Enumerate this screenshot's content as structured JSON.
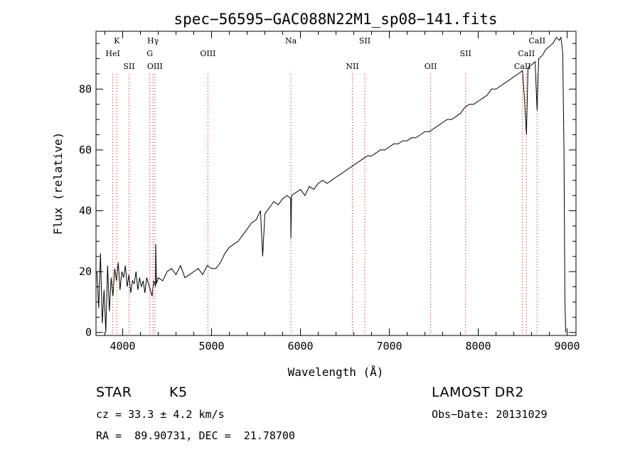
{
  "chart_data": {
    "type": "line",
    "title": "spec−56595−GAC088N22M1_sp08−141.fits",
    "xlabel": "Wavelength (Å)",
    "ylabel": "Flux (relative)",
    "xlim": [
      3700,
      9100
    ],
    "ylim": [
      -1,
      99
    ],
    "xticks": [
      4000,
      5000,
      6000,
      7000,
      8000,
      9000
    ],
    "xtick_labels": [
      "4000",
      "5000",
      "6000",
      "7000",
      "8000",
      "9000"
    ],
    "yticks": [
      0,
      20,
      40,
      60,
      80
    ],
    "ytick_labels": [
      "0",
      "20",
      "40",
      "60",
      "80"
    ],
    "grid": false,
    "legend": "none",
    "line_color": "#000000",
    "line_marker_color": "#cc0000",
    "series": [
      {
        "x": [
          3710,
          3730,
          3750,
          3770,
          3790,
          3810,
          3830,
          3850,
          3870,
          3890,
          3910,
          3930,
          3950,
          3970,
          3990,
          4010,
          4030,
          4050,
          4070,
          4090,
          4110,
          4130,
          4150,
          4170,
          4190,
          4210,
          4230,
          4250,
          4270,
          4290,
          4310,
          4330,
          4350,
          4370,
          4372,
          4380,
          4400,
          4450,
          4500,
          4550,
          4600,
          4650,
          4700,
          4750,
          4800,
          4850,
          4900,
          4950,
          5000,
          5050,
          5100,
          5150,
          5200,
          5250,
          5300,
          5350,
          5400,
          5450,
          5500,
          5550,
          5575,
          5600,
          5650,
          5700,
          5750,
          5800,
          5850,
          5890,
          5893,
          5900,
          5950,
          6000,
          6050,
          6100,
          6150,
          6200,
          6250,
          6300,
          6350,
          6400,
          6450,
          6500,
          6550,
          6600,
          6650,
          6700,
          6750,
          6800,
          6850,
          6900,
          6950,
          7000,
          7050,
          7100,
          7150,
          7200,
          7250,
          7300,
          7350,
          7400,
          7450,
          7500,
          7550,
          7600,
          7650,
          7700,
          7750,
          7800,
          7850,
          7900,
          7950,
          8000,
          8050,
          8100,
          8150,
          8200,
          8250,
          8300,
          8350,
          8400,
          8450,
          8498,
          8520,
          8542,
          8560,
          8600,
          8640,
          8662,
          8680,
          8720,
          8760,
          8800,
          8840,
          8880,
          8910,
          8930,
          8950,
          8965,
          8975,
          8985
        ],
        "y": [
          20,
          8,
          26,
          3,
          14,
          0,
          22,
          7,
          18,
          12,
          21,
          17,
          23,
          14,
          20,
          18,
          22,
          15,
          19,
          13,
          17,
          16,
          20,
          14,
          18,
          15,
          17,
          13,
          18,
          16,
          14,
          12,
          17,
          15,
          29,
          16,
          18,
          17,
          20,
          21,
          19,
          22,
          18,
          19,
          20,
          21,
          19,
          22,
          21,
          21,
          23,
          26,
          28,
          29,
          30,
          32,
          34,
          36,
          37,
          40,
          25,
          39,
          41,
          43,
          42,
          44,
          45,
          44,
          31,
          45,
          46,
          47,
          45,
          48,
          47,
          49,
          50,
          49,
          50,
          51,
          52,
          53,
          54,
          55,
          56,
          57,
          58,
          58,
          59,
          60,
          60,
          61,
          62,
          62,
          63,
          63,
          64,
          64,
          65,
          66,
          66,
          67,
          68,
          69,
          70,
          70,
          71,
          72,
          74,
          75,
          75,
          76,
          77,
          78,
          80,
          80,
          81,
          82,
          83,
          84,
          85,
          86,
          77,
          65,
          87,
          88,
          89,
          73,
          90,
          91,
          93,
          94,
          95,
          97,
          96,
          97,
          92,
          60,
          10,
          0
        ]
      }
    ],
    "lines": [
      {
        "x": 3889,
        "labels": [
          "HeI"
        ],
        "row": 2
      },
      {
        "x": 3934,
        "labels": [
          "K"
        ],
        "row": 1
      },
      {
        "x": 4072,
        "labels": [
          "SII"
        ],
        "row": 3
      },
      {
        "x": 4305,
        "labels": [
          "G"
        ],
        "row": 2
      },
      {
        "x": 4341,
        "labels": [
          "Hγ"
        ],
        "row": 1
      },
      {
        "x": 4363,
        "labels": [
          "OIII"
        ],
        "row": 3
      },
      {
        "x": 4959,
        "labels": [
          "OIII"
        ],
        "row": 2
      },
      {
        "x": 5893,
        "labels": [
          "Na"
        ],
        "row": 1
      },
      {
        "x": 6584,
        "labels": [
          "NII"
        ],
        "row": 3
      },
      {
        "x": 6724,
        "labels": [
          "SII"
        ],
        "row": 1
      },
      {
        "x": 7465,
        "labels": [
          "OII"
        ],
        "row": 3
      },
      {
        "x": 7858,
        "labels": [
          "SII"
        ],
        "row": 2
      },
      {
        "x": 8498,
        "labels": [
          "CaII"
        ],
        "row": 3
      },
      {
        "x": 8542,
        "labels": [
          "CaII"
        ],
        "row": 2
      },
      {
        "x": 8662,
        "labels": [
          "CaII"
        ],
        "row": 1
      }
    ]
  },
  "info": {
    "obj_class": "STAR",
    "subclass": "K5",
    "survey": "LAMOST DR2",
    "cz": "cz = 33.3 ± 4.2 km/s",
    "obs_date": "Obs−Date: 20131029",
    "coords": "RA =  89.90731, DEC =  21.78700"
  }
}
